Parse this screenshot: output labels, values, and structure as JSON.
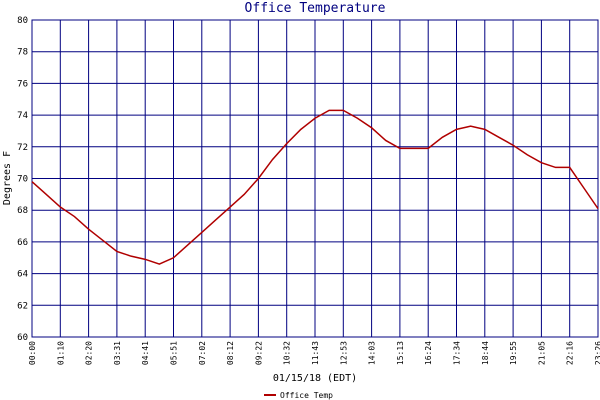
{
  "chart_data": {
    "type": "line",
    "title": "Office Temperature",
    "x_label": "01/15/18 (EDT)",
    "y_label": "Degrees F",
    "categories": [
      "00:00",
      null,
      "01:10",
      null,
      "02:20",
      null,
      "03:31",
      null,
      "04:41",
      null,
      "05:51",
      null,
      "07:02",
      null,
      "08:12",
      null,
      "09:22",
      null,
      "10:32",
      null,
      "11:43",
      null,
      "12:53",
      null,
      "14:03",
      null,
      "15:13",
      null,
      "16:24",
      null,
      "17:34",
      null,
      "18:44",
      null,
      "19:55",
      null,
      "21:05",
      null,
      "22:16",
      null,
      "23:26"
    ],
    "series": [
      {
        "name": "Office Temp",
        "color": "#b00000",
        "values": [
          69.8,
          69.0,
          68.2,
          67.6,
          66.8,
          66.1,
          65.4,
          65.1,
          64.9,
          64.6,
          65.0,
          65.8,
          66.6,
          67.4,
          68.2,
          69.0,
          70.0,
          71.2,
          72.2,
          73.1,
          73.8,
          74.3,
          74.3,
          73.8,
          73.2,
          72.4,
          71.9,
          71.9,
          71.9,
          72.6,
          73.1,
          73.3,
          73.1,
          72.6,
          72.1,
          71.5,
          71.0,
          70.7,
          70.7,
          69.4,
          68.1
        ]
      }
    ],
    "ylim": [
      60,
      80
    ],
    "yticks": [
      60,
      62,
      64,
      66,
      68,
      70,
      72,
      74,
      76,
      78,
      80
    ],
    "grid": true
  }
}
